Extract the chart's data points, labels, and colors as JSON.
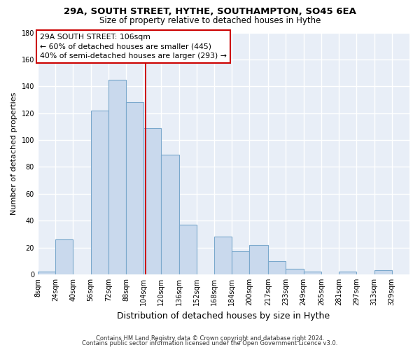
{
  "title_line1": "29A, SOUTH STREET, HYTHE, SOUTHAMPTON, SO45 6EA",
  "title_line2": "Size of property relative to detached houses in Hythe",
  "xlabel": "Distribution of detached houses by size in Hythe",
  "ylabel": "Number of detached properties",
  "bar_color": "#c9d9ed",
  "bar_edge_color": "#7aa8cc",
  "bins": [
    8,
    24,
    40,
    56,
    72,
    88,
    104,
    120,
    136,
    152,
    168,
    184,
    200,
    217,
    233,
    249,
    265,
    281,
    297,
    313,
    329,
    345
  ],
  "values": [
    2,
    26,
    0,
    122,
    145,
    128,
    109,
    89,
    37,
    0,
    28,
    17,
    22,
    10,
    4,
    2,
    0,
    2,
    0,
    3,
    0
  ],
  "vline_x": 106,
  "vline_color": "#cc0000",
  "ylim": [
    0,
    180
  ],
  "yticks": [
    0,
    20,
    40,
    60,
    80,
    100,
    120,
    140,
    160,
    180
  ],
  "annotation_box_text": [
    "29A SOUTH STREET: 106sqm",
    "← 60% of detached houses are smaller (445)",
    "40% of semi-detached houses are larger (293) →"
  ],
  "footer_line1": "Contains HM Land Registry data © Crown copyright and database right 2024.",
  "footer_line2": "Contains public sector information licensed under the Open Government Licence v3.0.",
  "background_color": "#ffffff",
  "plot_bg_color": "#e8eef7",
  "grid_color": "#ffffff",
  "tick_labels": [
    "8sqm",
    "24sqm",
    "40sqm",
    "56sqm",
    "72sqm",
    "88sqm",
    "104sqm",
    "120sqm",
    "136sqm",
    "152sqm",
    "168sqm",
    "184sqm",
    "200sqm",
    "217sqm",
    "233sqm",
    "249sqm",
    "265sqm",
    "281sqm",
    "297sqm",
    "313sqm",
    "329sqm"
  ]
}
